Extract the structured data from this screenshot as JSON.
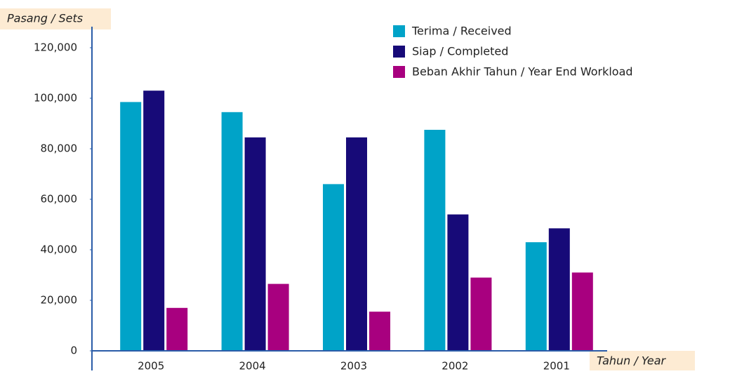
{
  "chart_data": {
    "type": "bar",
    "ylabel": "Pasang / Sets",
    "xlabel": "Tahun / Year",
    "categories": [
      "2005",
      "2004",
      "2003",
      "2002",
      "2001"
    ],
    "series": [
      {
        "name": "Terima / Received",
        "color": "#00a3c8",
        "values": [
          98500,
          94500,
          66000,
          87500,
          43000
        ]
      },
      {
        "name": "Siap / Completed",
        "color": "#170a78",
        "values": [
          103000,
          84500,
          84500,
          54000,
          48500
        ]
      },
      {
        "name": "Beban Akhir Tahun / Year End Workload",
        "color": "#a8007f",
        "values": [
          17000,
          26500,
          15500,
          29000,
          31000
        ]
      }
    ],
    "ylim": [
      0,
      120000
    ],
    "yticks": [
      {
        "value": 0,
        "label": "0"
      },
      {
        "value": 20000,
        "label": "20,000"
      },
      {
        "value": 40000,
        "label": "40,000"
      },
      {
        "value": 60000,
        "label": "60,000"
      },
      {
        "value": 80000,
        "label": "80,000"
      },
      {
        "value": 100000,
        "label": "100,000"
      },
      {
        "value": 120000,
        "label": "120,000"
      }
    ],
    "grid": false,
    "legend": "top-right"
  }
}
